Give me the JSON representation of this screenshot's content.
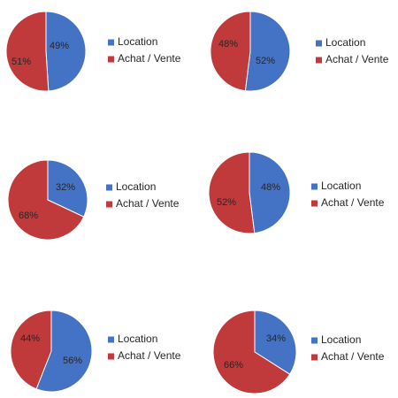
{
  "colors": {
    "location": "#4472C4",
    "achat_vente": "#C0393B",
    "edge": "#ffffff"
  },
  "chart_data": [
    {
      "type": "pie",
      "series": [
        {
          "name": "Location",
          "value": 49,
          "label": "49%"
        },
        {
          "name": "Achat / Vente",
          "value": 51,
          "label": "51%"
        }
      ]
    },
    {
      "type": "pie",
      "series": [
        {
          "name": "Location",
          "value": 52,
          "label": "52%"
        },
        {
          "name": "Achat / Vente",
          "value": 48,
          "label": "48%"
        }
      ]
    },
    {
      "type": "pie",
      "series": [
        {
          "name": "Location",
          "value": 32,
          "label": "32%"
        },
        {
          "name": "Achat / Vente",
          "value": 68,
          "label": "68%"
        }
      ]
    },
    {
      "type": "pie",
      "series": [
        {
          "name": "Location",
          "value": 48,
          "label": "48%"
        },
        {
          "name": "Achat / Vente",
          "value": 52,
          "label": "52%"
        }
      ]
    },
    {
      "type": "pie",
      "series": [
        {
          "name": "Location",
          "value": 56,
          "label": "56%"
        },
        {
          "name": "Achat / Vente",
          "value": 44,
          "label": "44%"
        }
      ]
    },
    {
      "type": "pie",
      "series": [
        {
          "name": "Location",
          "value": 34,
          "label": "34%"
        },
        {
          "name": "Achat / Vente",
          "value": 66,
          "label": "66%"
        }
      ]
    }
  ]
}
